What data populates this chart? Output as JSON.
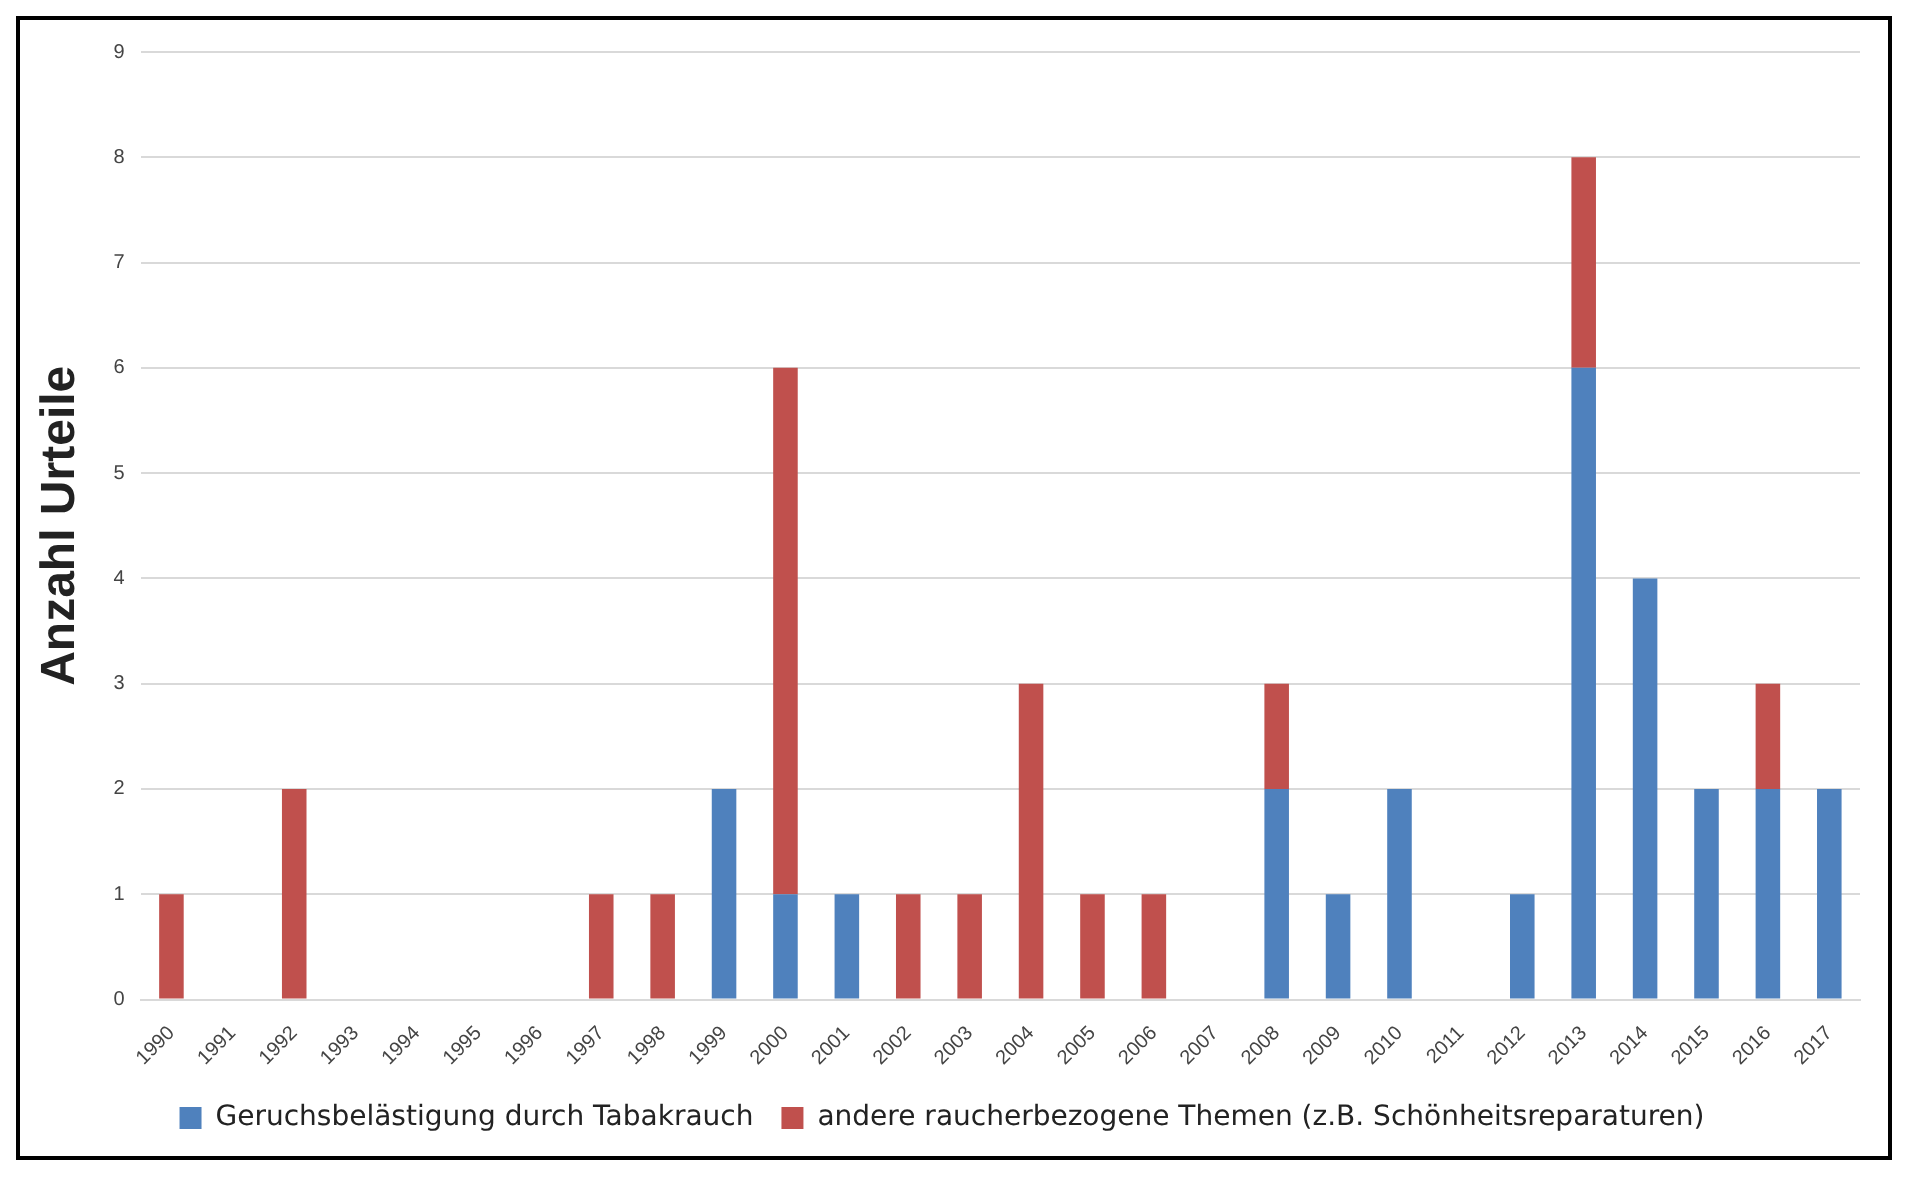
{
  "chart_data": {
    "type": "bar",
    "stacked": true,
    "ylabel": "Anzahl Urteile",
    "categories": [
      "1990",
      "1991",
      "1992",
      "1993",
      "1994",
      "1995",
      "1996",
      "1997",
      "1998",
      "1999",
      "2000",
      "2001",
      "2002",
      "2003",
      "2004",
      "2005",
      "2006",
      "2007",
      "2008",
      "2009",
      "2010",
      "2011",
      "2012",
      "2013",
      "2014",
      "2015",
      "2016",
      "2017"
    ],
    "series": [
      {
        "name": "Geruchsbelästigung durch Tabakrauch",
        "color": "#4f81bd",
        "values": [
          0,
          0,
          0,
          0,
          0,
          0,
          0,
          0,
          0,
          2,
          1,
          1,
          0,
          0,
          0,
          0,
          0,
          0,
          2,
          1,
          2,
          0,
          1,
          6,
          4,
          2,
          2,
          2
        ]
      },
      {
        "name": "andere raucherbezogene Themen (z.B. Schönheitsreparaturen)",
        "color": "#c0504d",
        "values": [
          1,
          0,
          2,
          0,
          0,
          0,
          0,
          1,
          1,
          0,
          5,
          0,
          1,
          1,
          3,
          1,
          1,
          0,
          1,
          0,
          0,
          0,
          0,
          2,
          0,
          0,
          1,
          0
        ]
      }
    ],
    "ylim": [
      0,
      9
    ],
    "yticks": [
      0,
      1,
      2,
      3,
      4,
      5,
      6,
      7,
      8,
      9
    ],
    "grid": "y",
    "legend": "bottom"
  }
}
